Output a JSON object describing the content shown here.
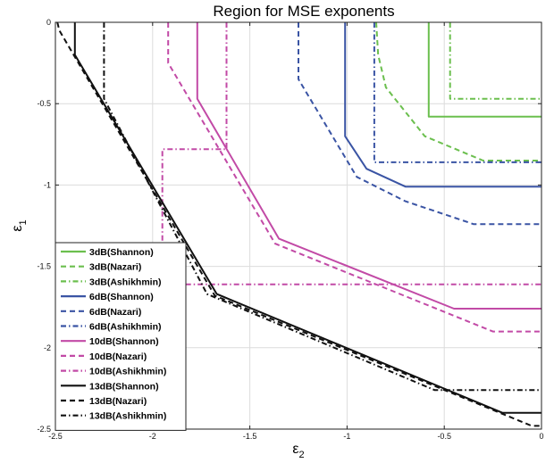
{
  "chart_data": {
    "type": "line",
    "title": "Region for MSE exponents",
    "xlabel": {
      "main": "ε",
      "sub": "2"
    },
    "ylabel": {
      "main": "ε",
      "sub": "1"
    },
    "xlim": [
      -2.5,
      0
    ],
    "ylim": [
      -2.5,
      0
    ],
    "xticks": [
      -2.5,
      -2,
      -1.5,
      -1,
      -0.5,
      0
    ],
    "xtick_labels": [
      "-2.5",
      "-2",
      "-1.5",
      "-1",
      "-0.5",
      "0"
    ],
    "yticks": [
      0,
      -0.5,
      -1,
      -1.5,
      -2,
      -2.5
    ],
    "ytick_labels": [
      "0",
      "-0.5",
      "-1",
      "-1.5",
      "-2",
      "-2.5"
    ],
    "grid": true,
    "legend_position": "bottom-left",
    "colors": {
      "3dB": "#6bbf4e",
      "6dB": "#3a54a4",
      "10dB": "#c24aa6",
      "13dB": "#111111"
    },
    "series": [
      {
        "name": "3dB(Shannon)",
        "color": "#6bbf4e",
        "style": "solid",
        "x": [
          -0.58,
          -0.58,
          0
        ],
        "y": [
          0,
          -0.58,
          -0.58
        ]
      },
      {
        "name": "3dB(Nazari)",
        "color": "#6bbf4e",
        "style": "dashed",
        "x": [
          -0.85,
          -0.84,
          -0.8,
          -0.6,
          -0.3,
          0
        ],
        "y": [
          0,
          -0.2,
          -0.4,
          -0.7,
          -0.85,
          -0.85
        ]
      },
      {
        "name": "3dB(Ashikhmin)",
        "color": "#6bbf4e",
        "style": "dashdot",
        "x": [
          -0.47,
          -0.47,
          0
        ],
        "y": [
          0,
          -0.47,
          -0.47
        ]
      },
      {
        "name": "6dB(Shannon)",
        "color": "#3a54a4",
        "style": "solid",
        "x": [
          -1.01,
          -1.01,
          -0.9,
          -0.7,
          0
        ],
        "y": [
          0,
          -0.7,
          -0.9,
          -1.01,
          -1.01
        ]
      },
      {
        "name": "6dB(Nazari)",
        "color": "#3a54a4",
        "style": "dashed",
        "x": [
          -1.25,
          -1.25,
          -0.95,
          -0.7,
          -0.4,
          -0.35,
          0
        ],
        "y": [
          0,
          -0.35,
          -0.95,
          -1.1,
          -1.22,
          -1.24,
          -1.24
        ]
      },
      {
        "name": "6dB(Ashikhmin)",
        "color": "#3a54a4",
        "style": "dashdot",
        "x": [
          -0.86,
          -0.86,
          0
        ],
        "y": [
          0,
          -0.86,
          -0.86
        ]
      },
      {
        "name": "10dB(Shannon)",
        "color": "#c24aa6",
        "style": "solid",
        "x": [
          -1.77,
          -1.77,
          -1.35,
          -0.45,
          0
        ],
        "y": [
          0,
          -0.47,
          -1.33,
          -1.76,
          -1.76
        ]
      },
      {
        "name": "10dB(Nazari)",
        "color": "#c24aa6",
        "style": "dashed",
        "x": [
          -1.92,
          -1.92,
          -1.37,
          -0.25,
          0
        ],
        "y": [
          0,
          -0.25,
          -1.36,
          -1.9,
          -1.9
        ]
      },
      {
        "name": "10dB(Ashikhmin)",
        "color": "#c24aa6",
        "style": "dashdot",
        "x": [
          -1.62,
          -1.62,
          -1.95,
          -1.95,
          -0.79,
          -0.79,
          0
        ],
        "y": [
          0,
          -0.78,
          -0.78,
          -1.61,
          -1.61,
          -1.61,
          -1.61
        ]
      },
      {
        "name": "13dB(Shannon)",
        "color": "#111111",
        "style": "solid",
        "x": [
          -2.4,
          -2.4,
          -1.67,
          -0.2,
          0
        ],
        "y": [
          0,
          -0.2,
          -1.67,
          -2.4,
          -2.4
        ]
      },
      {
        "name": "13dB(Nazari)",
        "color": "#111111",
        "style": "dashed",
        "x": [
          -2.49,
          -2.48,
          -1.68,
          -0.05,
          0
        ],
        "y": [
          0,
          -0.05,
          -1.68,
          -2.48,
          -2.48
        ]
      },
      {
        "name": "13dB(Ashikhmin)",
        "color": "#111111",
        "style": "dashdot",
        "x": [
          -2.25,
          -2.25,
          -1.72,
          -0.55,
          0
        ],
        "y": [
          0,
          -0.47,
          -1.67,
          -2.26,
          -2.26
        ]
      }
    ]
  }
}
